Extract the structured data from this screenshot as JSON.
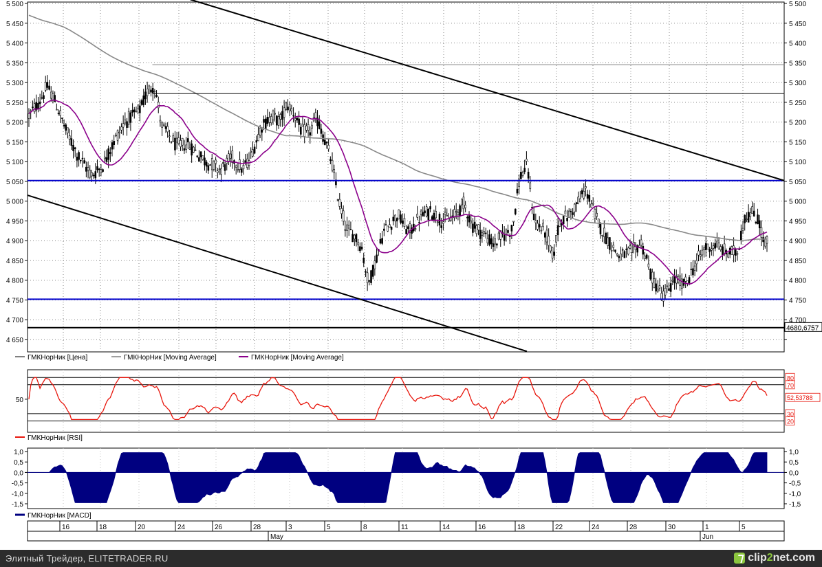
{
  "chart_data": [
    {
      "type": "candlestick",
      "panel": "price",
      "y_ticks": [
        "5 500",
        "5 450",
        "5 400",
        "5 350",
        "5 300",
        "5 250",
        "5 200",
        "5 150",
        "5 100",
        "5 050",
        "5 000",
        "4 950",
        "4 900",
        "4 850",
        "4 800",
        "4 750",
        "4 700",
        "4 650"
      ],
      "y_tick_values": [
        5500,
        5450,
        5400,
        5350,
        5300,
        5250,
        5200,
        5150,
        5100,
        5050,
        5000,
        4950,
        4900,
        4850,
        4800,
        4750,
        4700,
        4650
      ],
      "ylim": [
        4625,
        5500
      ],
      "current_value_label": "4680,6757",
      "current_value": 4680.68,
      "legend": [
        "ГМКНорНик [Цена]",
        "ГМКНорНик [Moving Average]",
        "ГМКНорНик [Moving Average]"
      ],
      "horizontal_levels": [
        {
          "value": 5345,
          "color": "#808080",
          "x_from": 0.165
        },
        {
          "value": 5272,
          "color": "#000000",
          "x_from": 0.165
        },
        {
          "value": 5052,
          "color": "#0000cc",
          "x_from": 0
        },
        {
          "value": 4752,
          "color": "#0000cc",
          "x_from": 0
        },
        {
          "value": 4680,
          "color": "#000000",
          "x_from": 0
        }
      ],
      "trend_lines": [
        {
          "x0": 0.215,
          "y0": 5510,
          "x1": 1.0,
          "y1": 5052
        },
        {
          "x0": 0.0,
          "y0": 5015,
          "x1": 0.66,
          "y1": 4620
        }
      ],
      "colors": {
        "candle": "#000000",
        "ma_slow": "#888888",
        "ma_fast": "#8b008b",
        "level": "#0000cc"
      }
    },
    {
      "type": "line",
      "panel": "rsi",
      "legend": "ГМКНорНик [RSI]",
      "y_tick_left": "50",
      "levels": [
        "80",
        "70",
        "30",
        "20"
      ],
      "level_values": [
        80,
        70,
        30,
        20
      ],
      "current_value_label": "52,53788",
      "ylim": [
        10,
        85
      ],
      "color": "#e8160c"
    },
    {
      "type": "area",
      "panel": "macd",
      "legend": "ГМКНорНик [MACD]",
      "y_ticks": [
        "1,0",
        "0,5",
        "0,0",
        "-0,5",
        "-1,0",
        "-1,5"
      ],
      "y_tick_values": [
        1.0,
        0.5,
        0.0,
        -0.5,
        -1.0,
        -1.5
      ],
      "ylim": [
        -1.75,
        1.1
      ],
      "color": "#000080"
    }
  ],
  "x_axis": {
    "day_labels": [
      "16",
      "18",
      "20",
      "24",
      "26",
      "28",
      "3",
      "5",
      "8",
      "11",
      "14",
      "16",
      "18",
      "22",
      "24",
      "28",
      "30",
      "1",
      "5"
    ],
    "month_labels": [
      "May",
      "Jun"
    ]
  },
  "footer": {
    "left_text": "Элитный Трейдер, ELITETRADER.RU",
    "logo_prefix": "clip",
    "logo_num": "2",
    "logo_suffix": "net.com"
  }
}
